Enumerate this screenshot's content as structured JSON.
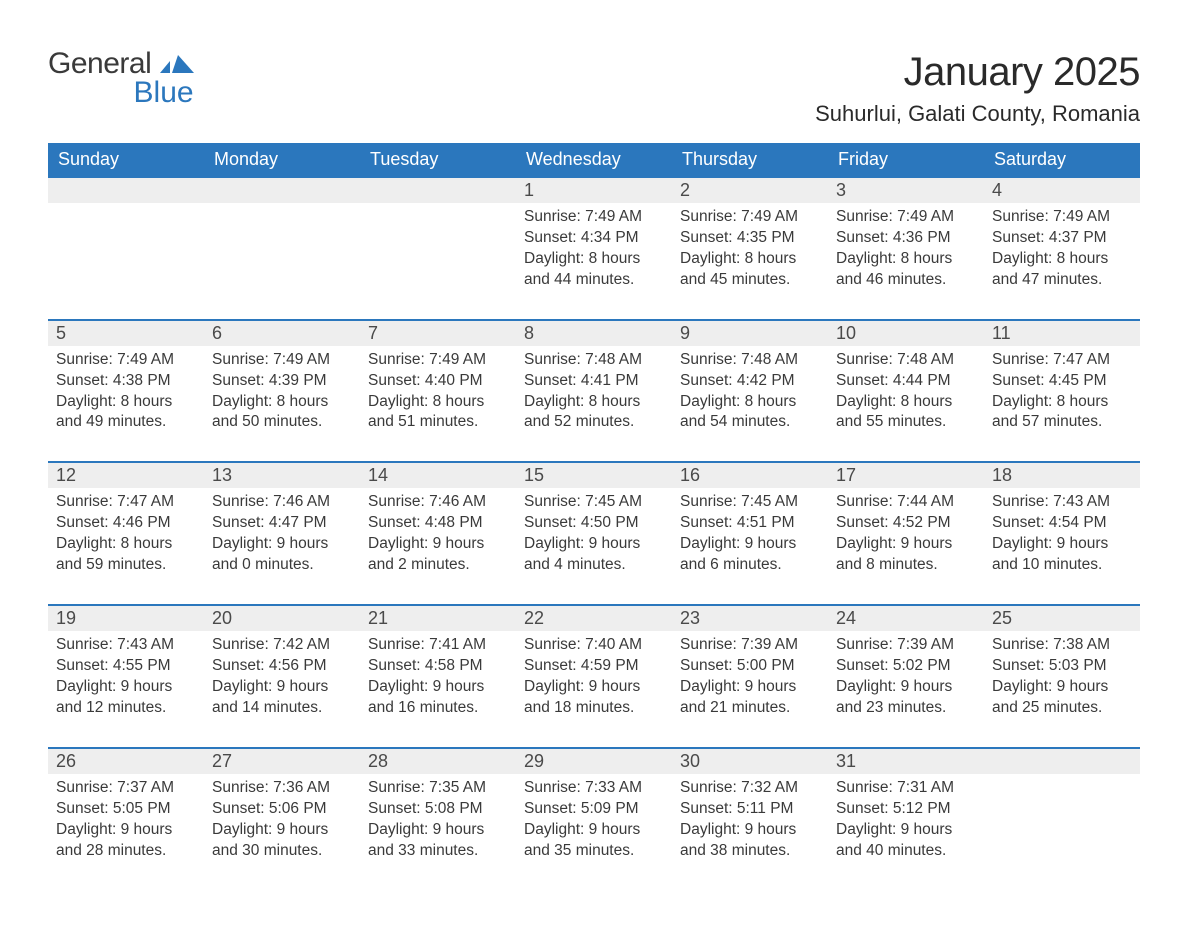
{
  "brand": {
    "general": "General",
    "blue": "Blue"
  },
  "title": "January 2025",
  "location": "Suhurlui, Galati County, Romania",
  "colors": {
    "header_bg": "#2b77bd",
    "header_text": "#ffffff",
    "daynum_bg": "#eeeeee",
    "rule": "#2b77bd",
    "body_text": "#3a3a3a",
    "page_bg": "#ffffff",
    "brand_blue": "#2b77bd"
  },
  "day_headers": [
    "Sunday",
    "Monday",
    "Tuesday",
    "Wednesday",
    "Thursday",
    "Friday",
    "Saturday"
  ],
  "weeks": [
    {
      "days": [
        null,
        null,
        null,
        {
          "n": "1",
          "sunrise": "7:49 AM",
          "sunset": "4:34 PM",
          "daylight": "8 hours and 44 minutes."
        },
        {
          "n": "2",
          "sunrise": "7:49 AM",
          "sunset": "4:35 PM",
          "daylight": "8 hours and 45 minutes."
        },
        {
          "n": "3",
          "sunrise": "7:49 AM",
          "sunset": "4:36 PM",
          "daylight": "8 hours and 46 minutes."
        },
        {
          "n": "4",
          "sunrise": "7:49 AM",
          "sunset": "4:37 PM",
          "daylight": "8 hours and 47 minutes."
        }
      ]
    },
    {
      "days": [
        {
          "n": "5",
          "sunrise": "7:49 AM",
          "sunset": "4:38 PM",
          "daylight": "8 hours and 49 minutes."
        },
        {
          "n": "6",
          "sunrise": "7:49 AM",
          "sunset": "4:39 PM",
          "daylight": "8 hours and 50 minutes."
        },
        {
          "n": "7",
          "sunrise": "7:49 AM",
          "sunset": "4:40 PM",
          "daylight": "8 hours and 51 minutes."
        },
        {
          "n": "8",
          "sunrise": "7:48 AM",
          "sunset": "4:41 PM",
          "daylight": "8 hours and 52 minutes."
        },
        {
          "n": "9",
          "sunrise": "7:48 AM",
          "sunset": "4:42 PM",
          "daylight": "8 hours and 54 minutes."
        },
        {
          "n": "10",
          "sunrise": "7:48 AM",
          "sunset": "4:44 PM",
          "daylight": "8 hours and 55 minutes."
        },
        {
          "n": "11",
          "sunrise": "7:47 AM",
          "sunset": "4:45 PM",
          "daylight": "8 hours and 57 minutes."
        }
      ]
    },
    {
      "days": [
        {
          "n": "12",
          "sunrise": "7:47 AM",
          "sunset": "4:46 PM",
          "daylight": "8 hours and 59 minutes."
        },
        {
          "n": "13",
          "sunrise": "7:46 AM",
          "sunset": "4:47 PM",
          "daylight": "9 hours and 0 minutes."
        },
        {
          "n": "14",
          "sunrise": "7:46 AM",
          "sunset": "4:48 PM",
          "daylight": "9 hours and 2 minutes."
        },
        {
          "n": "15",
          "sunrise": "7:45 AM",
          "sunset": "4:50 PM",
          "daylight": "9 hours and 4 minutes."
        },
        {
          "n": "16",
          "sunrise": "7:45 AM",
          "sunset": "4:51 PM",
          "daylight": "9 hours and 6 minutes."
        },
        {
          "n": "17",
          "sunrise": "7:44 AM",
          "sunset": "4:52 PM",
          "daylight": "9 hours and 8 minutes."
        },
        {
          "n": "18",
          "sunrise": "7:43 AM",
          "sunset": "4:54 PM",
          "daylight": "9 hours and 10 minutes."
        }
      ]
    },
    {
      "days": [
        {
          "n": "19",
          "sunrise": "7:43 AM",
          "sunset": "4:55 PM",
          "daylight": "9 hours and 12 minutes."
        },
        {
          "n": "20",
          "sunrise": "7:42 AM",
          "sunset": "4:56 PM",
          "daylight": "9 hours and 14 minutes."
        },
        {
          "n": "21",
          "sunrise": "7:41 AM",
          "sunset": "4:58 PM",
          "daylight": "9 hours and 16 minutes."
        },
        {
          "n": "22",
          "sunrise": "7:40 AM",
          "sunset": "4:59 PM",
          "daylight": "9 hours and 18 minutes."
        },
        {
          "n": "23",
          "sunrise": "7:39 AM",
          "sunset": "5:00 PM",
          "daylight": "9 hours and 21 minutes."
        },
        {
          "n": "24",
          "sunrise": "7:39 AM",
          "sunset": "5:02 PM",
          "daylight": "9 hours and 23 minutes."
        },
        {
          "n": "25",
          "sunrise": "7:38 AM",
          "sunset": "5:03 PM",
          "daylight": "9 hours and 25 minutes."
        }
      ]
    },
    {
      "days": [
        {
          "n": "26",
          "sunrise": "7:37 AM",
          "sunset": "5:05 PM",
          "daylight": "9 hours and 28 minutes."
        },
        {
          "n": "27",
          "sunrise": "7:36 AM",
          "sunset": "5:06 PM",
          "daylight": "9 hours and 30 minutes."
        },
        {
          "n": "28",
          "sunrise": "7:35 AM",
          "sunset": "5:08 PM",
          "daylight": "9 hours and 33 minutes."
        },
        {
          "n": "29",
          "sunrise": "7:33 AM",
          "sunset": "5:09 PM",
          "daylight": "9 hours and 35 minutes."
        },
        {
          "n": "30",
          "sunrise": "7:32 AM",
          "sunset": "5:11 PM",
          "daylight": "9 hours and 38 minutes."
        },
        {
          "n": "31",
          "sunrise": "7:31 AM",
          "sunset": "5:12 PM",
          "daylight": "9 hours and 40 minutes."
        },
        null
      ]
    }
  ],
  "labels": {
    "sunrise_prefix": "Sunrise: ",
    "sunset_prefix": "Sunset: ",
    "daylight_prefix": "Daylight: "
  }
}
